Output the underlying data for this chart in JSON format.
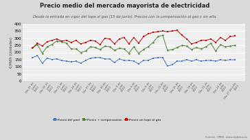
{
  "title": "Precio medio del mercado mayorista de electricidad",
  "subtitle": "Desde la entrada en vigor del tope al gas (15 de junio). Precios con la compensación al gas y sin ella.",
  "ylabel": "€/MWh (Unidades)",
  "source": "Fuente: OMIE, www.epdata.es",
  "ylim": [
    0,
    400
  ],
  "yticks": [
    0,
    50,
    100,
    150,
    200,
    250,
    300,
    350,
    400
  ],
  "x_labels": [
    "Día 15 de\njunio\n2022",
    "Día 18 de\njunio\n2022",
    "Día 21 de\njunio\n2022",
    "Día 24 de\njunio\n2022",
    "Día 27 de\njunio\n2022",
    "Día 30 de\njunio\n2022",
    "Día 3 de\njulio\n2022",
    "Día 6 de\njulio\n2022",
    "Día 9 de\njulio\n2022",
    "Día 12 de\njulio\n2022",
    "Día 15 de\njulio\n2022",
    "Día 18 de\njulio\n2022",
    "Día 21 de\njulio\n2022",
    "Día 24 de\njulio\n2022",
    "Día 27 de julio\n2022"
  ],
  "pool": [
    165,
    178,
    125,
    160,
    152,
    155,
    145,
    140,
    135,
    140,
    125,
    145,
    160,
    165,
    165,
    155,
    155,
    130,
    155,
    145,
    145,
    140,
    120,
    145,
    145,
    160,
    165,
    165,
    105,
    115,
    140,
    140,
    150,
    140,
    150,
    140,
    145,
    145,
    140,
    150,
    145,
    150,
    148
  ],
  "compensacion": [
    235,
    255,
    195,
    240,
    255,
    280,
    275,
    265,
    225,
    225,
    200,
    210,
    240,
    235,
    220,
    245,
    240,
    215,
    230,
    225,
    195,
    240,
    195,
    220,
    240,
    270,
    310,
    320,
    215,
    220,
    235,
    250,
    245,
    220,
    235,
    225,
    240,
    265,
    210,
    255,
    240,
    245,
    250
  ],
  "sin_tope": [
    230,
    265,
    245,
    275,
    285,
    295,
    280,
    285,
    270,
    285,
    260,
    270,
    285,
    280,
    255,
    300,
    295,
    260,
    295,
    305,
    260,
    305,
    265,
    310,
    330,
    340,
    345,
    350,
    345,
    350,
    355,
    320,
    295,
    260,
    270,
    285,
    285,
    295,
    270,
    305,
    285,
    310,
    315
  ],
  "pool_color": "#4472c4",
  "compensacion_color": "#548235",
  "sin_tope_color": "#c00000",
  "bg_color": "#d9d9d9",
  "plot_bg_color": "#efefef",
  "grid_color": "#ffffff",
  "legend_labels": [
    "Precio del pool",
    "Precio + compensación",
    "Precio sin tope al gas"
  ]
}
